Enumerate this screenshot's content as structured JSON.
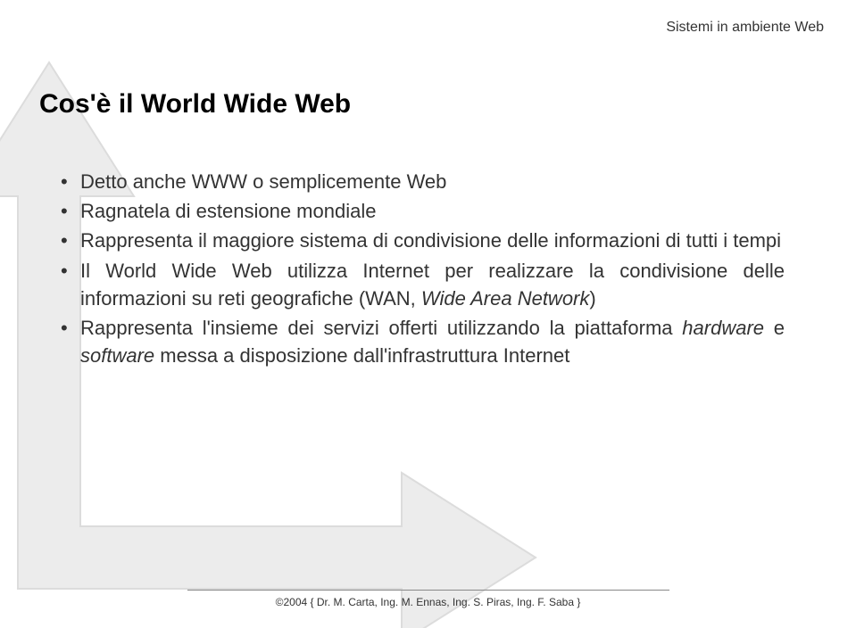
{
  "header": "Sistemi in ambiente Web",
  "title": "Cos'è il World Wide Web",
  "bullets": [
    {
      "html": "Detto anche WWW o semplicemente Web"
    },
    {
      "html": "Ragnatela di estensione mondiale"
    },
    {
      "html": "Rappresenta il maggiore sistema di condivisione delle informazioni di tutti i tempi"
    },
    {
      "html": "Il World Wide Web utilizza Internet per realizzare la condivisione delle informazioni su reti geografiche (WAN, <span class=\"italic\">Wide Area Network</span>)"
    },
    {
      "html": "Rappresenta l'insieme dei servizi offerti utilizzando la piattaforma <span class=\"italic\">hardware</span> e <span class=\"italic\">software</span> messa a disposizione dall'infrastruttura Internet"
    }
  ],
  "footer": "©2004 { Dr. M. Carta, Ing. M. Ennas, Ing. S. Piras, Ing. F. Saba }",
  "colors": {
    "bg": "#ffffff",
    "text": "#333333",
    "title": "#000000",
    "arrow_fill": "#e8e8e8",
    "arrow_stroke": "#d8d8d8",
    "hr": "#888888"
  }
}
